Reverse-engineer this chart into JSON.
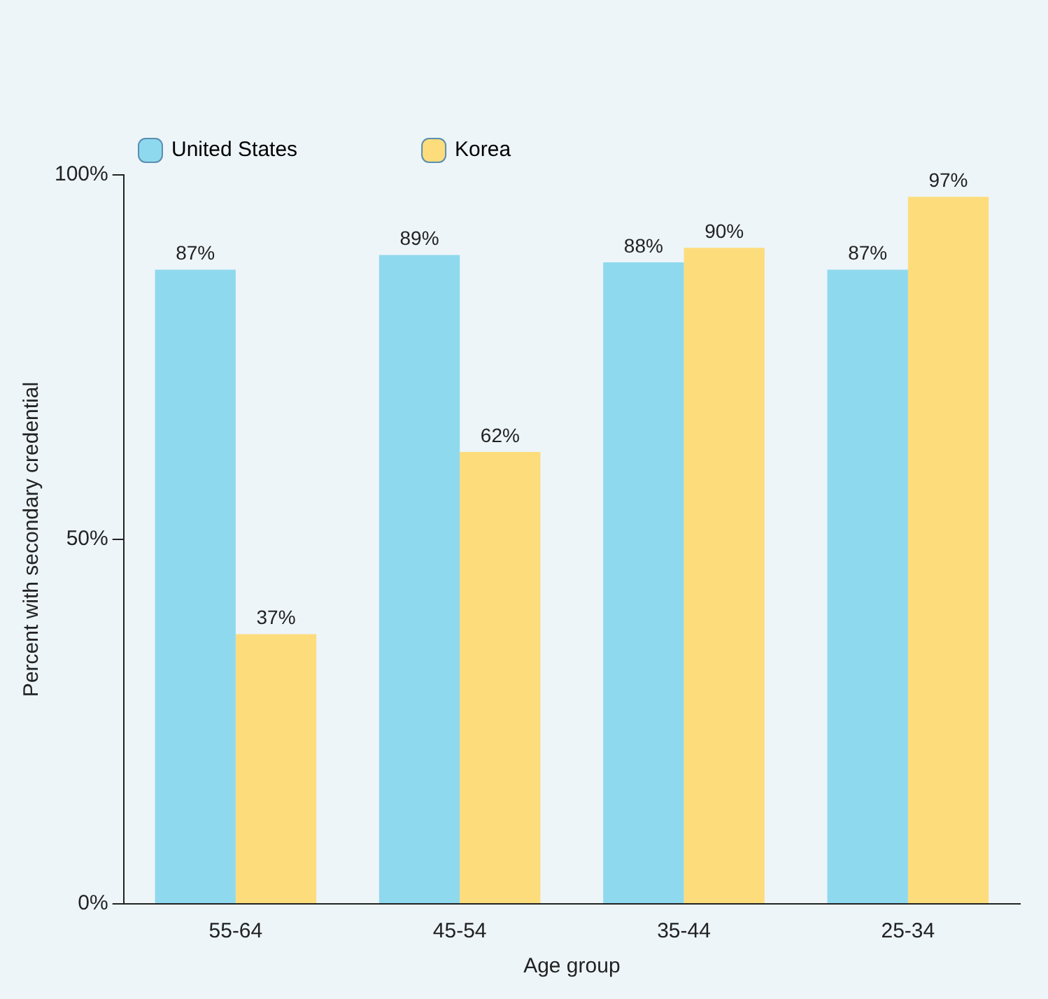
{
  "chart_data": {
    "type": "bar",
    "xlabel": "Age group",
    "ylabel": "Percent with secondary credential",
    "categories": [
      "55-64",
      "45-54",
      "35-44",
      "25-34"
    ],
    "series": [
      {
        "name": "United States",
        "color": "#8fd9ee",
        "values": [
          87,
          89,
          88,
          87
        ],
        "value_labels": [
          "87%",
          "89%",
          "88%",
          "87%"
        ]
      },
      {
        "name": "Korea",
        "color": "#fddc7c",
        "values": [
          37,
          62,
          90,
          97
        ],
        "value_labels": [
          "37%",
          "62%",
          "90%",
          "97%"
        ]
      }
    ],
    "ylim": [
      0,
      100
    ],
    "yticks": [
      {
        "value": 0,
        "label": "0%"
      },
      {
        "value": 50,
        "label": "50%"
      },
      {
        "value": 100,
        "label": "100%"
      }
    ],
    "grid": false,
    "legend": "top left"
  }
}
